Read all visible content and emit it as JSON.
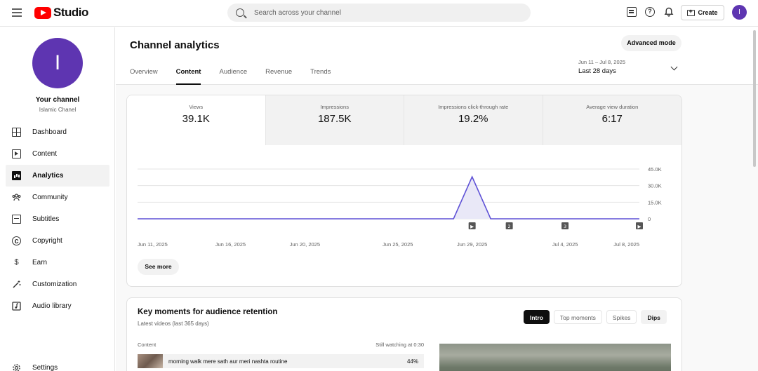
{
  "topbar": {
    "logo_text": "Studio",
    "search_placeholder": "Search across your channel",
    "create_label": "Create",
    "avatar_letter": "I"
  },
  "sidebar": {
    "avatar_letter": "I",
    "channel_title": "Your channel",
    "channel_name": "Islamic Chanel",
    "items": [
      {
        "label": "Dashboard",
        "icon": "dashboard-icon"
      },
      {
        "label": "Content",
        "icon": "content-icon"
      },
      {
        "label": "Analytics",
        "icon": "analytics-icon",
        "active": true
      },
      {
        "label": "Community",
        "icon": "community-icon"
      },
      {
        "label": "Subtitles",
        "icon": "subtitles-icon"
      },
      {
        "label": "Copyright",
        "icon": "copyright-icon"
      },
      {
        "label": "Earn",
        "icon": "earn-icon"
      },
      {
        "label": "Customization",
        "icon": "customization-icon"
      },
      {
        "label": "Audio library",
        "icon": "audio-library-icon"
      }
    ],
    "settings_label": "Settings"
  },
  "header": {
    "title": "Channel analytics",
    "advanced_mode": "Advanced mode",
    "tabs": [
      "Overview",
      "Content",
      "Audience",
      "Revenue",
      "Trends"
    ],
    "active_tab": "Content",
    "date_range": "Jun 11 – Jul 8, 2025",
    "date_label": "Last 28 days"
  },
  "metrics": [
    {
      "label": "Views",
      "value": "39.1K"
    },
    {
      "label": "Impressions",
      "value": "187.5K"
    },
    {
      "label": "Impressions click-through rate",
      "value": "19.2%"
    },
    {
      "label": "Average view duration",
      "value": "6:17"
    }
  ],
  "see_more": "See more",
  "chart_data": {
    "type": "line",
    "series": [
      {
        "x": [
          "Jun 11, 2025",
          "Jun 12, 2025",
          "Jun 13, 2025",
          "Jun 14, 2025",
          "Jun 15, 2025",
          "Jun 16, 2025",
          "Jun 17, 2025",
          "Jun 18, 2025",
          "Jun 19, 2025",
          "Jun 20, 2025",
          "Jun 21, 2025",
          "Jun 22, 2025",
          "Jun 23, 2025",
          "Jun 24, 2025",
          "Jun 25, 2025",
          "Jun 26, 2025",
          "Jun 27, 2025",
          "Jun 28, 2025",
          "Jun 29, 2025",
          "Jun 30, 2025",
          "Jul 1, 2025",
          "Jul 2, 2025",
          "Jul 3, 2025",
          "Jul 4, 2025",
          "Jul 5, 2025",
          "Jul 6, 2025",
          "Jul 7, 2025",
          "Jul 8, 2025"
        ],
        "values": [
          0,
          0,
          0,
          0,
          0,
          0,
          0,
          0,
          0,
          0,
          0,
          0,
          0,
          0,
          0,
          0,
          0,
          0,
          38000,
          0,
          0,
          0,
          0,
          0,
          0,
          0,
          0,
          0
        ]
      }
    ],
    "x_tick_labels": [
      "Jun 11, 2025",
      "Jun 16, 2025",
      "Jun 20, 2025",
      "Jun 25, 2025",
      "Jun 29, 2025",
      "Jul 4, 2025",
      "Jul 8, 2025"
    ],
    "y_tick_labels": [
      "45.0K",
      "30.0K",
      "15.0K",
      "0"
    ],
    "y_ticks": [
      45000,
      30000,
      15000,
      0
    ],
    "ylim": [
      0,
      45000
    ],
    "markers": [
      {
        "date": "Jun 29, 2025",
        "label": "▶"
      },
      {
        "date": "Jul 1, 2025",
        "label": "2"
      },
      {
        "date": "Jul 4, 2025",
        "label": "3"
      },
      {
        "date": "Jul 8, 2025",
        "label": "▶"
      }
    ],
    "line_color": "#5e51d6",
    "fill_color": "#e9e8f7"
  },
  "key_moments": {
    "title": "Key moments for audience retention",
    "subtitle": "Latest videos (last 365 days)",
    "chips": [
      "Intro",
      "Top moments",
      "Spikes",
      "Dips"
    ],
    "col_content": "Content",
    "col_still": "Still watching at 0:30",
    "row_title": "morning walk mere sath aur meri nashta routine",
    "row_value": "44%"
  }
}
